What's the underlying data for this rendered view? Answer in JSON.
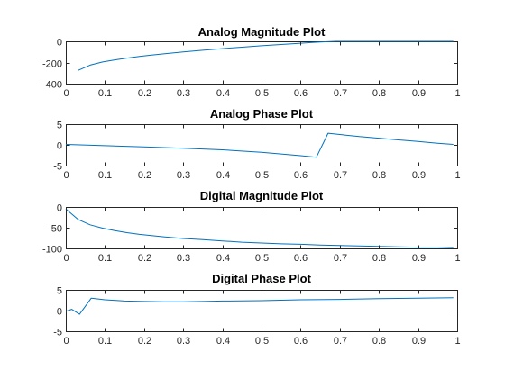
{
  "chart_data": [
    {
      "type": "line",
      "title": "Analog Magnitude Plot",
      "xlabel": "",
      "ylabel": "",
      "xlim": [
        0,
        1
      ],
      "ylim": [
        -400,
        0
      ],
      "xticks": [
        0,
        0.1,
        0.2,
        0.3,
        0.4,
        0.5,
        0.6,
        0.7,
        0.8,
        0.9,
        1
      ],
      "xtick_labels": [
        "0",
        "0.1",
        "0.2",
        "0.3",
        "0.4",
        "0.5",
        "0.6",
        "0.7",
        "0.8",
        "0.9",
        "1"
      ],
      "yticks": [
        -400,
        -200,
        0
      ],
      "ytick_labels": [
        "-400",
        "-200",
        "0"
      ],
      "grid": false,
      "line_color": "#0072BD",
      "series": [
        {
          "x": [
            0.031,
            0.062,
            0.094,
            0.125,
            0.156,
            0.188,
            0.219,
            0.25,
            0.3,
            0.35,
            0.4,
            0.45,
            0.5,
            0.55,
            0.6,
            0.625,
            0.65,
            0.69,
            0.75,
            0.8,
            0.85,
            0.9,
            0.95,
            0.99
          ],
          "y": [
            -275,
            -225,
            -195,
            -175,
            -158,
            -143,
            -130,
            -118,
            -100,
            -84,
            -69,
            -55,
            -42,
            -30,
            -18,
            -12,
            -6,
            0,
            0,
            0,
            0,
            0,
            0,
            0
          ]
        }
      ]
    },
    {
      "type": "line",
      "title": "Analog Phase Plot",
      "xlabel": "",
      "ylabel": "",
      "xlim": [
        0,
        1
      ],
      "ylim": [
        -5,
        5
      ],
      "xticks": [
        0,
        0.1,
        0.2,
        0.3,
        0.4,
        0.5,
        0.6,
        0.7,
        0.8,
        0.9,
        1
      ],
      "xtick_labels": [
        "0",
        "0.1",
        "0.2",
        "0.3",
        "0.4",
        "0.5",
        "0.6",
        "0.7",
        "0.8",
        "0.9",
        "1"
      ],
      "yticks": [
        -5,
        0,
        5
      ],
      "ytick_labels": [
        "-5",
        "0",
        "5"
      ],
      "grid": false,
      "line_color": "#0072BD",
      "series": [
        {
          "x": [
            0,
            0.1,
            0.2,
            0.3,
            0.4,
            0.5,
            0.55,
            0.6,
            0.64,
            0.67,
            0.7,
            0.75,
            0.8,
            0.85,
            0.9,
            0.95,
            0.99
          ],
          "y": [
            0.1,
            -0.2,
            -0.5,
            -0.8,
            -1.2,
            -1.8,
            -2.2,
            -2.6,
            -3.0,
            2.8,
            2.5,
            2.0,
            1.6,
            1.2,
            0.8,
            0.4,
            0.1
          ]
        }
      ]
    },
    {
      "type": "line",
      "title": "Digital Magnitude Plot",
      "xlabel": "",
      "ylabel": "",
      "xlim": [
        0,
        1
      ],
      "ylim": [
        -100,
        0
      ],
      "xticks": [
        0,
        0.1,
        0.2,
        0.3,
        0.4,
        0.5,
        0.6,
        0.7,
        0.8,
        0.9,
        1
      ],
      "xtick_labels": [
        "0",
        "0.1",
        "0.2",
        "0.3",
        "0.4",
        "0.5",
        "0.6",
        "0.7",
        "0.8",
        "0.9",
        "1"
      ],
      "yticks": [
        -100,
        -50,
        0
      ],
      "ytick_labels": [
        "-100",
        "-50",
        "0"
      ],
      "grid": false,
      "line_color": "#0072BD",
      "series": [
        {
          "x": [
            0,
            0.031,
            0.062,
            0.094,
            0.125,
            0.156,
            0.188,
            0.219,
            0.25,
            0.3,
            0.35,
            0.4,
            0.45,
            0.5,
            0.55,
            0.6,
            0.65,
            0.7,
            0.75,
            0.8,
            0.85,
            0.9,
            0.95,
            0.99
          ],
          "y": [
            -5,
            -30,
            -43,
            -51,
            -57,
            -62,
            -66,
            -69,
            -72,
            -76,
            -79,
            -82,
            -85,
            -87,
            -89,
            -90,
            -92,
            -93,
            -94,
            -95,
            -96,
            -97,
            -97,
            -98
          ]
        }
      ]
    },
    {
      "type": "line",
      "title": "Digital Phase Plot",
      "xlabel": "",
      "ylabel": "",
      "xlim": [
        0,
        1
      ],
      "ylim": [
        -5,
        5
      ],
      "xticks": [
        0,
        0.1,
        0.2,
        0.3,
        0.4,
        0.5,
        0.6,
        0.7,
        0.8,
        0.9,
        1
      ],
      "xtick_labels": [
        "0",
        "0.1",
        "0.2",
        "0.3",
        "0.4",
        "0.5",
        "0.6",
        "0.7",
        "0.8",
        "0.9",
        "1"
      ],
      "yticks": [
        -5,
        0,
        5
      ],
      "ytick_labels": [
        "-5",
        "0",
        "5"
      ],
      "grid": false,
      "line_color": "#0072BD",
      "series": [
        {
          "x": [
            0,
            0.015,
            0.035,
            0.065,
            0.1,
            0.15,
            0.2,
            0.25,
            0.3,
            0.35,
            0.4,
            0.5,
            0.6,
            0.7,
            0.8,
            0.9,
            0.99
          ],
          "y": [
            -0.2,
            0.3,
            -0.9,
            3.0,
            2.6,
            2.3,
            2.2,
            2.1,
            2.1,
            2.2,
            2.3,
            2.4,
            2.6,
            2.7,
            2.9,
            3.0,
            3.1
          ]
        }
      ]
    }
  ]
}
